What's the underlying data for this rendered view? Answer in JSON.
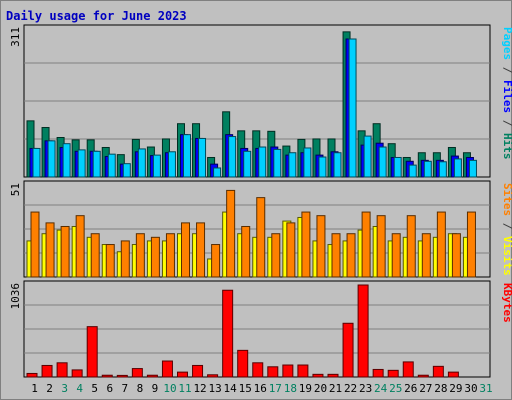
{
  "chart_data": {
    "title": "Daily usage for June 2023",
    "type": "bar",
    "days": [
      "1",
      "2",
      "3",
      "4",
      "5",
      "6",
      "7",
      "8",
      "9",
      "10",
      "11",
      "12",
      "13",
      "14",
      "15",
      "16",
      "17",
      "18",
      "19",
      "20",
      "21",
      "22",
      "23",
      "24",
      "25",
      "26",
      "27",
      "28",
      "29",
      "30",
      "31"
    ],
    "weekend_days": [
      "3",
      "4",
      "10",
      "11",
      "17",
      "18",
      "24",
      "25",
      "31"
    ],
    "panels": [
      {
        "id": "hits_panel",
        "ymax_label": "311",
        "ymax": 311,
        "right_label": [
          {
            "text": "Pages",
            "color": "#00d0ff"
          },
          {
            "text": " / ",
            "color": "#404040"
          },
          {
            "text": "Files",
            "color": "#0000ff"
          },
          {
            "text": " / ",
            "color": "#404040"
          },
          {
            "text": "Hits",
            "color": "#008060"
          }
        ],
        "series": [
          {
            "name": "Hits",
            "color": "#008060",
            "values": [
              118,
              104,
              83,
              78,
              78,
              62,
              47,
              79,
              63,
              80,
              112,
              112,
              41,
              137,
              97,
              97,
              96,
              65,
              79,
              80,
              80,
              305,
              97,
              112,
              70,
              41,
              51,
              51,
              62,
              51,
              0
            ]
          },
          {
            "name": "Files",
            "color": "#0000ff",
            "values": [
              60,
              76,
              62,
              54,
              54,
              43,
              27,
              53,
              45,
              51,
              89,
              81,
              27,
              89,
              60,
              60,
              63,
              46,
              51,
              46,
              53,
              290,
              67,
              71,
              41,
              33,
              35,
              35,
              44,
              41,
              0
            ]
          },
          {
            "name": "Pages",
            "color": "#00d0ff",
            "values": [
              60,
              76,
              70,
              57,
              54,
              48,
              28,
              59,
              46,
              53,
              89,
              81,
              19,
              85,
              54,
              63,
              58,
              51,
              61,
              42,
              51,
              290,
              86,
              63,
              41,
              25,
              33,
              32,
              38,
              35,
              0
            ]
          }
        ]
      },
      {
        "id": "visits_panel",
        "ymax_label": "51",
        "ymax": 51,
        "right_label": [
          {
            "text": "Sites",
            "color": "#ff8000"
          },
          {
            "text": " / ",
            "color": "#404040"
          },
          {
            "text": "Visits",
            "color": "#ffff00"
          }
        ],
        "series": [
          {
            "name": "Visits",
            "color": "#ffff00",
            "values": [
              20,
              24,
              26,
              28,
              22,
              18,
              14,
              18,
              20,
              20,
              24,
              24,
              10,
              36,
              24,
              22,
              22,
              31,
              33,
              20,
              18,
              20,
              26,
              28,
              20,
              22,
              20,
              22,
              24,
              22,
              0
            ]
          },
          {
            "name": "Sites",
            "color": "#ff8000",
            "values": [
              36,
              30,
              28,
              34,
              24,
              18,
              20,
              24,
              22,
              24,
              30,
              30,
              18,
              48,
              28,
              44,
              24,
              30,
              36,
              34,
              24,
              24,
              36,
              34,
              24,
              34,
              24,
              36,
              24,
              36,
              0
            ]
          }
        ]
      },
      {
        "id": "kbytes_panel",
        "ymax_label": "1036",
        "ymax": 1036,
        "right_label": [
          {
            "text": "KBytes",
            "color": "#ff0000"
          }
        ],
        "series": [
          {
            "name": "KBytes",
            "color": "#ff0000",
            "values": [
              40,
              130,
              160,
              80,
              567,
              20,
              18,
              95,
              20,
              180,
              55,
              130,
              25,
              977,
              300,
              160,
              115,
              135,
              135,
              30,
              30,
              605,
              1036,
              85,
              75,
              170,
              20,
              120,
              55,
              0,
              0
            ]
          }
        ]
      }
    ]
  }
}
